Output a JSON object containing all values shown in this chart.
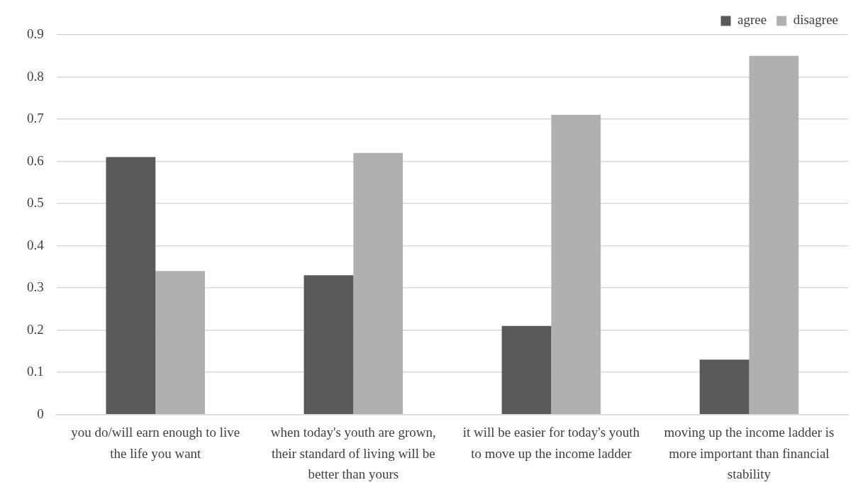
{
  "chart_data": {
    "type": "bar",
    "categories": [
      "you do/will earn enough to live the life you want",
      "when today's youth are grown, their standard of living will be better than yours",
      "it will be easier for today's youth to move up the income ladder",
      "moving up the income ladder is more important than financial stability"
    ],
    "series": [
      {
        "name": "agree",
        "color": "#595959",
        "values": [
          0.61,
          0.33,
          0.21,
          0.13
        ]
      },
      {
        "name": "disagree",
        "color": "#b0b0b0",
        "values": [
          0.34,
          0.62,
          0.71,
          0.85
        ]
      }
    ],
    "ylim": [
      0,
      0.9
    ],
    "yticks": [
      0,
      0.1,
      0.2,
      0.3,
      0.4,
      0.5,
      0.6,
      0.7,
      0.8,
      0.9
    ],
    "grid": "y",
    "legend": "top right"
  }
}
